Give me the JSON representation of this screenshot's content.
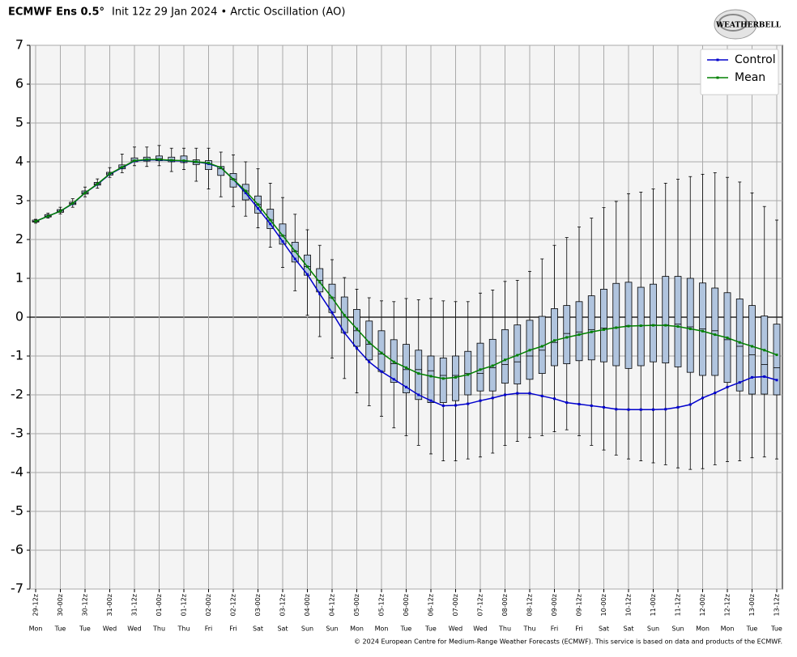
{
  "chart_data": {
    "type": "boxplot",
    "title": "ECMWF Ens 0.5°",
    "subtitle": "Init 12z 29 Jan 2024 • Arctic Oscillation (AO)",
    "logo": "WEATHERBELL",
    "footer": "© 2024 European Centre for Medium-Range Weather Forecasts (ECMWF). This service is based on data and products of the ECMWF.",
    "categories": [
      "29-12z",
      null,
      "30-00z",
      null,
      "30-12z",
      null,
      "31-00z",
      null,
      "31-12z",
      null,
      "01-00z",
      null,
      "01-12z",
      null,
      "02-00z",
      null,
      "02-12z",
      null,
      "03-00z",
      null,
      "03-12z",
      null,
      "04-00z",
      null,
      "04-12z",
      null,
      "05-00z",
      null,
      "05-12z",
      null,
      "06-00z",
      null,
      "06-12z",
      null,
      "07-00z",
      null,
      "07-12z",
      null,
      "08-00z",
      null,
      "08-12z",
      null,
      "09-00z",
      null,
      "09-12z",
      null,
      "10-00z",
      null,
      "10-12z",
      null,
      "11-00z",
      null,
      "11-12z",
      null,
      "12-00z",
      null,
      "12-12z",
      null,
      "13-00z",
      null,
      "13-12z"
    ],
    "days": [
      "Mon",
      null,
      "Tue",
      null,
      "Tue",
      null,
      "Wed",
      null,
      "Wed",
      null,
      "Thu",
      null,
      "Thu",
      null,
      "Fri",
      null,
      "Fri",
      null,
      "Sat",
      null,
      "Sat",
      null,
      "Sun",
      null,
      "Sun",
      null,
      "Mon",
      null,
      "Mon",
      null,
      "Tue",
      null,
      "Tue",
      null,
      "Wed",
      null,
      "Wed",
      null,
      "Thu",
      null,
      "Thu",
      null,
      "Fri",
      null,
      "Fri",
      null,
      "Sat",
      null,
      "Sat",
      null,
      "Sun",
      null,
      "Sun",
      null,
      "Mon",
      null,
      "Mon",
      null,
      "Tue",
      null,
      "Tue"
    ],
    "ylim": [
      -7,
      7
    ],
    "yticks": [
      -7,
      -6,
      -5,
      -4,
      -3,
      -2,
      -1,
      0,
      1,
      2,
      3,
      4,
      5,
      6,
      7
    ],
    "grid": true,
    "legend": "top-right",
    "box_color": "#b0c4de",
    "ensemble": {
      "min": [
        2.42,
        2.55,
        2.66,
        2.83,
        3.1,
        3.32,
        3.6,
        3.72,
        3.9,
        3.88,
        3.9,
        3.75,
        3.8,
        3.5,
        3.3,
        3.1,
        2.85,
        2.6,
        2.3,
        1.8,
        1.28,
        0.68,
        0.05,
        -0.5,
        -1.05,
        -1.58,
        -1.95,
        -2.28,
        -2.55,
        -2.85,
        -3.05,
        -3.3,
        -3.52,
        -3.7,
        -3.7,
        -3.65,
        -3.6,
        -3.5,
        -3.3,
        -3.2,
        -3.1,
        -3.05,
        -2.95,
        -2.9,
        -3.05,
        -3.3,
        -3.42,
        -3.55,
        -3.65,
        -3.7,
        -3.75,
        -3.8,
        -3.88,
        -3.92,
        -3.9,
        -3.8,
        -3.72,
        -3.7,
        -3.62,
        -3.6,
        -3.65
      ],
      "q1": [
        2.45,
        2.58,
        2.7,
        2.9,
        3.17,
        3.4,
        3.66,
        3.82,
        4.0,
        4.02,
        4.03,
        4.0,
        3.98,
        3.93,
        3.8,
        3.65,
        3.35,
        3.02,
        2.68,
        2.28,
        1.88,
        1.42,
        1.08,
        0.65,
        0.12,
        -0.4,
        -0.75,
        -1.1,
        -1.4,
        -1.68,
        -1.95,
        -2.12,
        -2.2,
        -2.2,
        -2.15,
        -2.0,
        -1.9,
        -1.9,
        -1.7,
        -1.72,
        -1.6,
        -1.45,
        -1.25,
        -1.2,
        -1.12,
        -1.1,
        -1.15,
        -1.25,
        -1.32,
        -1.25,
        -1.15,
        -1.18,
        -1.28,
        -1.42,
        -1.5,
        -1.5,
        -1.68,
        -1.9,
        -1.98,
        -1.98,
        -2.0
      ],
      "median": [
        2.47,
        2.6,
        2.73,
        2.93,
        3.2,
        3.43,
        3.69,
        3.86,
        4.04,
        4.06,
        4.08,
        4.05,
        4.03,
        3.98,
        3.95,
        3.82,
        3.55,
        3.25,
        2.9,
        2.5,
        2.1,
        1.7,
        1.3,
        0.95,
        0.5,
        0.0,
        -0.35,
        -0.7,
        -0.95,
        -1.2,
        -1.35,
        -1.35,
        -1.38,
        -1.5,
        -1.5,
        -1.45,
        -1.45,
        -1.3,
        -1.22,
        -1.15,
        -1.0,
        -0.85,
        -0.65,
        -0.42,
        -0.38,
        -0.32,
        -0.28,
        -0.27,
        -0.22,
        -0.22,
        -0.2,
        -0.2,
        -0.18,
        -0.25,
        -0.3,
        -0.35,
        -0.58,
        -0.75,
        -0.97,
        -1.22,
        -1.3
      ],
      "q3": [
        2.5,
        2.64,
        2.77,
        2.96,
        3.25,
        3.47,
        3.73,
        3.92,
        4.1,
        4.12,
        4.15,
        4.12,
        4.15,
        4.05,
        4.03,
        3.88,
        3.7,
        3.42,
        3.12,
        2.78,
        2.4,
        1.93,
        1.6,
        1.25,
        0.85,
        0.52,
        0.2,
        -0.1,
        -0.35,
        -0.58,
        -0.7,
        -0.85,
        -1.0,
        -1.05,
        -1.0,
        -0.88,
        -0.67,
        -0.57,
        -0.32,
        -0.2,
        -0.08,
        0.02,
        0.22,
        0.3,
        0.4,
        0.55,
        0.72,
        0.87,
        0.9,
        0.77,
        0.85,
        1.05,
        1.05,
        1.0,
        0.88,
        0.75,
        0.63,
        0.47,
        0.3,
        0.03,
        -0.18
      ],
      "max": [
        2.52,
        2.68,
        2.83,
        3.05,
        3.35,
        3.56,
        3.85,
        4.2,
        4.38,
        4.38,
        4.42,
        4.35,
        4.35,
        4.35,
        4.35,
        4.25,
        4.18,
        4.0,
        3.82,
        3.45,
        3.08,
        2.65,
        2.25,
        1.85,
        1.48,
        1.02,
        0.72,
        0.5,
        0.42,
        0.4,
        0.48,
        0.45,
        0.48,
        0.42,
        0.4,
        0.4,
        0.62,
        0.7,
        0.92,
        0.95,
        1.18,
        1.5,
        1.85,
        2.05,
        2.32,
        2.55,
        2.82,
        2.98,
        3.18,
        3.22,
        3.3,
        3.45,
        3.55,
        3.62,
        3.68,
        3.72,
        3.6,
        3.48,
        3.2,
        2.85,
        2.5
      ]
    },
    "series": [
      {
        "name": "Control",
        "color": "#0000cc",
        "values": [
          2.47,
          2.6,
          2.73,
          2.92,
          3.2,
          3.42,
          3.68,
          3.85,
          4.02,
          4.05,
          4.05,
          4.03,
          4.02,
          4.0,
          3.95,
          3.85,
          3.55,
          3.2,
          2.8,
          2.4,
          1.95,
          1.5,
          1.1,
          0.6,
          0.12,
          -0.4,
          -0.8,
          -1.15,
          -1.4,
          -1.6,
          -1.8,
          -2.0,
          -2.15,
          -2.28,
          -2.27,
          -2.23,
          -2.15,
          -2.08,
          -2.0,
          -1.96,
          -1.96,
          -2.03,
          -2.1,
          -2.2,
          -2.24,
          -2.28,
          -2.32,
          -2.37,
          -2.38,
          -2.38,
          -2.38,
          -2.37,
          -2.32,
          -2.25,
          -2.08,
          -1.95,
          -1.8,
          -1.68,
          -1.55,
          -1.53,
          -1.62
        ]
      },
      {
        "name": "Mean",
        "color": "#008000",
        "values": [
          2.47,
          2.6,
          2.73,
          2.93,
          3.2,
          3.43,
          3.69,
          3.86,
          4.03,
          4.06,
          4.06,
          4.04,
          4.03,
          4.0,
          3.97,
          3.85,
          3.55,
          3.25,
          2.9,
          2.5,
          2.1,
          1.7,
          1.3,
          0.9,
          0.5,
          0.05,
          -0.3,
          -0.65,
          -0.92,
          -1.15,
          -1.3,
          -1.45,
          -1.52,
          -1.58,
          -1.55,
          -1.48,
          -1.35,
          -1.25,
          -1.1,
          -0.98,
          -0.85,
          -0.75,
          -0.6,
          -0.52,
          -0.45,
          -0.38,
          -0.32,
          -0.27,
          -0.23,
          -0.22,
          -0.21,
          -0.21,
          -0.24,
          -0.3,
          -0.36,
          -0.45,
          -0.53,
          -0.65,
          -0.75,
          -0.85,
          -0.97
        ]
      }
    ]
  }
}
